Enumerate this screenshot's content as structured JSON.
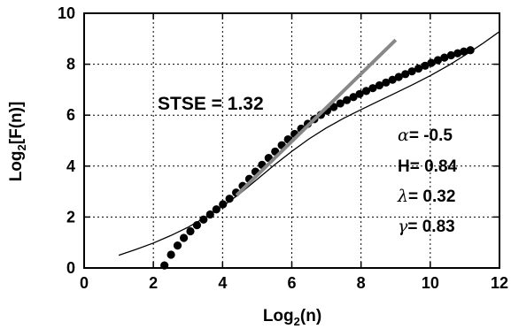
{
  "chart_data": {
    "type": "scatter",
    "title": "",
    "xlabel": {
      "base": "Log",
      "sub": "2",
      "rest": "(n)"
    },
    "ylabel": {
      "base": "Log",
      "sub": "2",
      "rest": "[F(n)]"
    },
    "xlim": [
      0,
      12
    ],
    "ylim": [
      0,
      10
    ],
    "xticks": [
      "0",
      "2",
      "4",
      "6",
      "8",
      "10",
      "12"
    ],
    "yticks": [
      "0",
      "2",
      "4",
      "6",
      "8",
      "10"
    ],
    "xtick_values": [
      0,
      2,
      4,
      6,
      8,
      10,
      12
    ],
    "ytick_values": [
      0,
      2,
      4,
      6,
      8,
      10
    ],
    "grid": true,
    "series": [
      {
        "kind": "points",
        "x": [
          2.32,
          2.51,
          2.7,
          2.88,
          3.07,
          3.26,
          3.45,
          3.64,
          3.82,
          4.01,
          4.2,
          4.39,
          4.58,
          4.77,
          4.95,
          5.14,
          5.33,
          5.52,
          5.71,
          5.89,
          6.08,
          6.27,
          6.46,
          6.65,
          6.84,
          7.02,
          7.21,
          7.4,
          7.59,
          7.78,
          7.96,
          8.15,
          8.34,
          8.53,
          8.72,
          8.91,
          9.09,
          9.28,
          9.47,
          9.66,
          9.85,
          10.03,
          10.22,
          10.41,
          10.6,
          10.79,
          10.97,
          11.16
        ],
        "y": [
          0.1,
          0.52,
          0.88,
          1.18,
          1.44,
          1.68,
          1.9,
          2.1,
          2.3,
          2.5,
          2.72,
          2.96,
          3.22,
          3.5,
          3.78,
          4.05,
          4.32,
          4.57,
          4.82,
          5.05,
          5.26,
          5.47,
          5.66,
          5.84,
          6.01,
          6.17,
          6.32,
          6.46,
          6.59,
          6.71,
          6.83,
          6.95,
          7.06,
          7.17,
          7.28,
          7.39,
          7.5,
          7.61,
          7.72,
          7.83,
          7.94,
          8.05,
          8.16,
          8.26,
          8.35,
          8.43,
          8.5,
          8.55
        ],
        "color": "#000000"
      },
      {
        "kind": "line",
        "x": [
          1.0,
          1.5,
          2.0,
          2.5,
          3.0,
          3.5,
          4.0,
          4.5,
          5.0,
          5.5,
          6.0,
          6.5,
          7.0,
          7.5,
          8.0,
          8.5,
          9.0,
          9.5,
          10.0,
          10.5,
          11.0,
          11.5,
          12.0
        ],
        "y": [
          0.5,
          0.73,
          0.98,
          1.27,
          1.6,
          1.98,
          2.42,
          2.92,
          3.48,
          4.05,
          4.58,
          5.07,
          5.5,
          5.88,
          6.22,
          6.55,
          6.87,
          7.2,
          7.55,
          7.93,
          8.35,
          8.8,
          9.28
        ],
        "color": "#000000"
      },
      {
        "kind": "line",
        "x": [
          4.4,
          9.0
        ],
        "y": [
          2.85,
          8.95
        ],
        "color": "#888888"
      }
    ],
    "annotations": {
      "stse": "STSE = 1.32",
      "alpha_symbol": "α",
      "alpha_value": "= -0.5",
      "h_value": "H= 0.84",
      "lambda_symbol": "λ",
      "lambda_value": "= 0.32",
      "gamma_symbol": "γ",
      "gamma_value": "= 0.83"
    }
  }
}
